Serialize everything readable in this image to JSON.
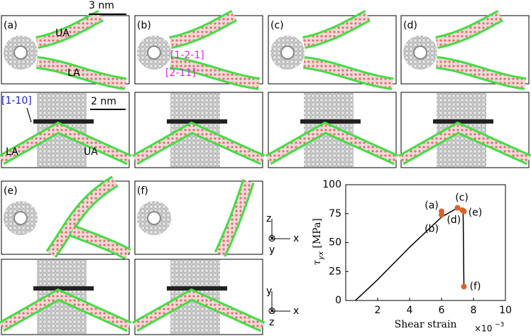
{
  "panels": [
    "(a)",
    "(b)",
    "(c)",
    "(d)",
    "(e)",
    "(f)"
  ],
  "annotations": {
    "ua_top": "UA",
    "la_top": "LA",
    "dir_a": "[1-2-1]",
    "dir_b": "[2-11]",
    "dir_c": "[1-10]",
    "la_bottom": "LA",
    "ua_bottom": "UA",
    "scale_top": "3 nm",
    "scale_bottom": "2 nm"
  },
  "triads": {
    "top": {
      "up": "z",
      "right": "x",
      "down": "y",
      "cross": "⊗"
    },
    "bottom": {
      "up": "y",
      "right": "x",
      "down": "z",
      "cross": "⊗"
    }
  },
  "chart_data": {
    "type": "line",
    "xlabel": "Shear strain",
    "x_multiplier": "×10",
    "x_exponent": "−3",
    "ylabel_symbol": "τ",
    "ylabel_sub": "yx",
    "ylabel_unit": "[MPa]",
    "xlim": [
      0,
      10
    ],
    "xticks": [
      2,
      4,
      6,
      8,
      10
    ],
    "ylim": [
      0,
      100
    ],
    "yticks": [
      0,
      25,
      50,
      75,
      100
    ],
    "line": {
      "color": "#000000",
      "x": [
        0.6,
        1,
        2,
        3,
        4,
        5,
        6,
        6.5,
        7.0,
        7.3,
        7.35,
        7.4
      ],
      "y": [
        0,
        5,
        18,
        32,
        46,
        59,
        72,
        76,
        80,
        78,
        78,
        12
      ]
    },
    "points": {
      "color": "#d9622b",
      "x": [
        6.0,
        6.0,
        7.0,
        7.3,
        7.4,
        7.4
      ],
      "y": [
        77,
        74,
        80,
        78,
        77,
        12
      ],
      "labels": [
        "(a)",
        "(b)",
        "(c)",
        "(d)",
        "(e)",
        "(f)"
      ]
    }
  }
}
